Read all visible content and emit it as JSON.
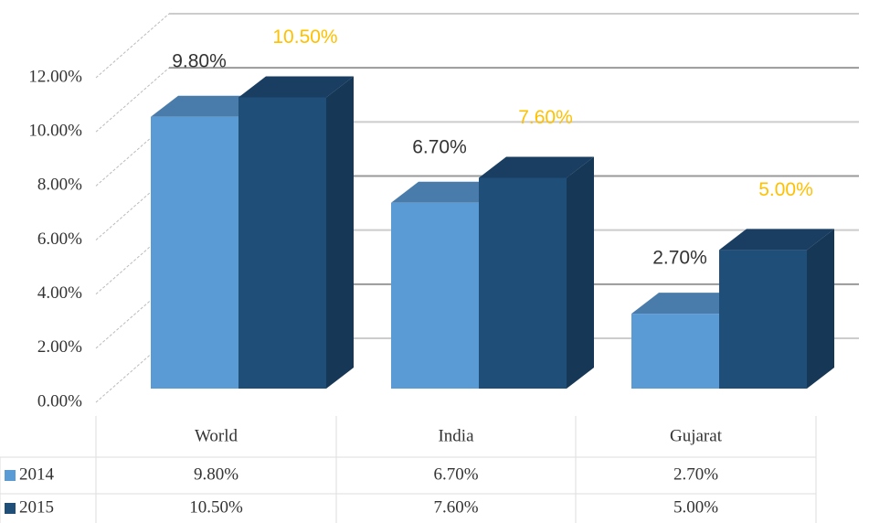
{
  "chart_data": {
    "type": "bar3d",
    "categories": [
      "World",
      "India",
      "Gujarat"
    ],
    "series": [
      {
        "name": "2014",
        "color": "#5b9bd5",
        "values": [
          9.8,
          6.7,
          2.7
        ],
        "value_labels": [
          "9.80%",
          "6.70%",
          "2.70%"
        ]
      },
      {
        "name": "2015",
        "color": "#1f4e79",
        "values": [
          10.5,
          7.6,
          5.0
        ],
        "value_labels": [
          "10.50%",
          "7.60%",
          "5.00%"
        ]
      }
    ],
    "ylim": [
      0,
      12
    ],
    "yticks": [
      {
        "value": 0,
        "label": "0.00%"
      },
      {
        "value": 2,
        "label": "2.00%"
      },
      {
        "value": 4,
        "label": "4.00%"
      },
      {
        "value": 6,
        "label": "6.00%"
      },
      {
        "value": 8,
        "label": "8.00%"
      },
      {
        "value": 10,
        "label": "10.00%"
      },
      {
        "value": 12,
        "label": "12.00%"
      }
    ],
    "grid": true,
    "data_table": true
  }
}
